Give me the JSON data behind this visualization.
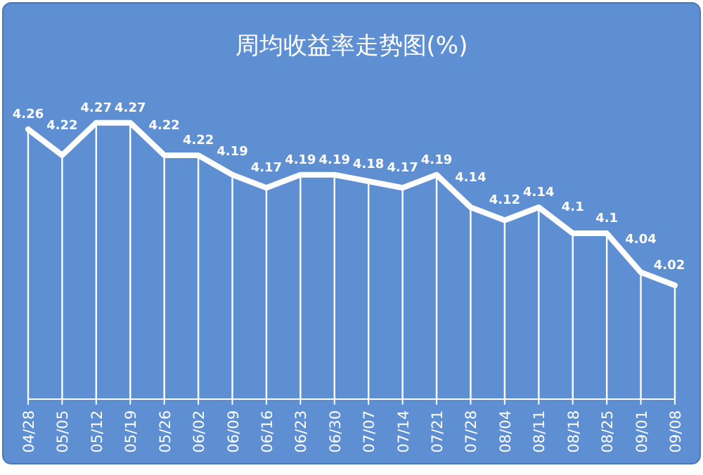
{
  "chart_data": {
    "type": "line",
    "title": "周均收益率走势图(%)",
    "categories": [
      "04/28",
      "05/05",
      "05/12",
      "05/19",
      "05/26",
      "06/02",
      "06/09",
      "06/16",
      "06/23",
      "06/30",
      "07/07",
      "07/14",
      "07/21",
      "07/28",
      "08/04",
      "08/11",
      "08/18",
      "08/25",
      "09/01",
      "09/08"
    ],
    "series": [
      {
        "color": "#ffffff",
        "values": [
          4.26,
          4.22,
          4.27,
          4.27,
          4.22,
          4.22,
          4.19,
          4.17,
          4.19,
          4.19,
          4.18,
          4.17,
          4.19,
          4.14,
          4.12,
          4.14,
          4.1,
          4.1,
          4.04,
          4.02
        ]
      }
    ],
    "relative": false,
    "data_labels": true,
    "grid": "x",
    "marker": "none",
    "line_style": "solid"
  }
}
